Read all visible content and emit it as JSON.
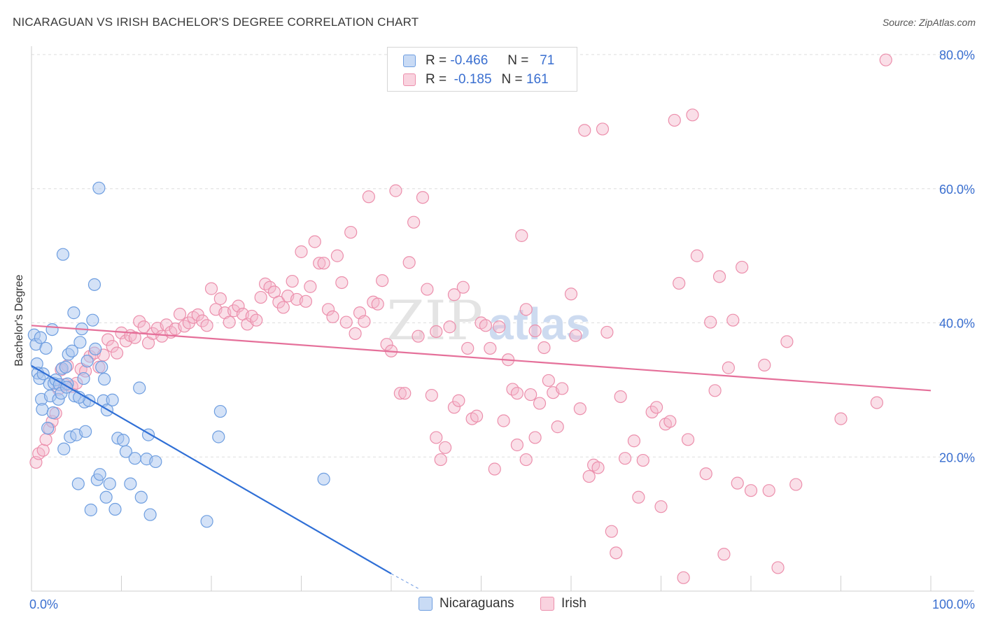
{
  "title": "NICARAGUAN VS IRISH BACHELOR'S DEGREE CORRELATION CHART",
  "source": "Source: ZipAtlas.com",
  "watermark": {
    "zip": "ZIP",
    "atlas": "atlas"
  },
  "colors": {
    "blue_fill": "#a9c6ef",
    "blue_stroke": "#6e9ee0",
    "blue_line": "#2f6fd6",
    "pink_fill": "#f5b8cb",
    "pink_stroke": "#ec8fac",
    "pink_line": "#e5709a",
    "axis_label": "#3a6fd0",
    "grid": "#dddddd"
  },
  "legend": {
    "row1": {
      "r_label": "R =",
      "r_value": "-0.466",
      "n_label": "N =",
      "n_value": "71"
    },
    "row2": {
      "r_label": "R =",
      "r_value": "-0.185",
      "n_label": "N =",
      "n_value": "161"
    }
  },
  "bottom_legend": {
    "series1": "Nicaraguans",
    "series2": "Irish"
  },
  "chart_data": {
    "type": "scatter",
    "xlabel": "",
    "ylabel": "Bachelor's Degree",
    "xlim": [
      0,
      100
    ],
    "ylim": [
      0,
      80
    ],
    "x_tick_labels": [
      "0.0%",
      "100.0%"
    ],
    "y_ticks": [
      20,
      40,
      60,
      80
    ],
    "y_tick_labels": [
      "20.0%",
      "40.0%",
      "60.0%",
      "80.0%"
    ],
    "grid": "horizontal dashed",
    "series": [
      {
        "name": "Nicaraguans",
        "color": "#a9c6ef",
        "trend": {
          "x": [
            0,
            40
          ],
          "y": [
            33.6,
            2.6
          ]
        },
        "trend_ext": {
          "x": [
            40,
            43
          ],
          "y": [
            2.6,
            0.4
          ]
        },
        "points": [
          [
            0.3,
            38.2
          ],
          [
            0.5,
            36.8
          ],
          [
            0.6,
            33.9
          ],
          [
            0.7,
            32.5
          ],
          [
            0.9,
            31.7
          ],
          [
            1.0,
            37.8
          ],
          [
            1.1,
            28.6
          ],
          [
            1.2,
            27.1
          ],
          [
            1.3,
            32.4
          ],
          [
            1.6,
            36.2
          ],
          [
            1.8,
            24.3
          ],
          [
            2.0,
            30.9
          ],
          [
            2.1,
            29.1
          ],
          [
            2.3,
            39.0
          ],
          [
            2.4,
            26.6
          ],
          [
            2.5,
            31.0
          ],
          [
            2.7,
            31.5
          ],
          [
            3.0,
            28.6
          ],
          [
            3.1,
            30.8
          ],
          [
            3.3,
            29.5
          ],
          [
            3.4,
            33.2
          ],
          [
            3.5,
            50.2
          ],
          [
            3.6,
            21.2
          ],
          [
            3.8,
            33.4
          ],
          [
            4.0,
            30.9
          ],
          [
            4.1,
            35.3
          ],
          [
            4.3,
            23.0
          ],
          [
            4.5,
            35.8
          ],
          [
            4.7,
            41.5
          ],
          [
            4.8,
            29.1
          ],
          [
            5.0,
            23.3
          ],
          [
            5.2,
            16.0
          ],
          [
            5.4,
            37.1
          ],
          [
            5.6,
            39.1
          ],
          [
            5.8,
            31.7
          ],
          [
            5.9,
            28.2
          ],
          [
            6.0,
            23.8
          ],
          [
            6.2,
            34.3
          ],
          [
            6.4,
            28.4
          ],
          [
            6.6,
            12.1
          ],
          [
            6.8,
            40.4
          ],
          [
            7.0,
            45.7
          ],
          [
            7.1,
            36.1
          ],
          [
            7.3,
            16.6
          ],
          [
            7.5,
            60.1
          ],
          [
            7.6,
            17.4
          ],
          [
            7.8,
            33.4
          ],
          [
            8.0,
            28.4
          ],
          [
            8.1,
            31.6
          ],
          [
            8.3,
            14.0
          ],
          [
            8.4,
            27.0
          ],
          [
            8.7,
            16.0
          ],
          [
            9.0,
            28.5
          ],
          [
            9.3,
            12.2
          ],
          [
            9.6,
            22.8
          ],
          [
            10.2,
            22.5
          ],
          [
            10.5,
            20.8
          ],
          [
            11.0,
            16.0
          ],
          [
            11.5,
            19.8
          ],
          [
            12.0,
            30.3
          ],
          [
            12.2,
            14.0
          ],
          [
            12.8,
            19.7
          ],
          [
            13.0,
            23.3
          ],
          [
            13.2,
            11.4
          ],
          [
            13.8,
            19.3
          ],
          [
            19.5,
            10.4
          ],
          [
            20.8,
            23.0
          ],
          [
            21.0,
            26.8
          ],
          [
            32.5,
            16.7
          ],
          [
            5.3,
            28.9
          ],
          [
            3.9,
            30.4
          ]
        ]
      },
      {
        "name": "Irish",
        "color": "#f5b8cb",
        "trend": {
          "x": [
            0,
            100
          ],
          "y": [
            39.6,
            29.9
          ]
        },
        "points": [
          [
            0.5,
            19.2
          ],
          [
            0.8,
            20.5
          ],
          [
            1.3,
            21.0
          ],
          [
            1.6,
            22.6
          ],
          [
            2.0,
            24.2
          ],
          [
            2.3,
            25.3
          ],
          [
            2.7,
            26.5
          ],
          [
            3.0,
            30.1
          ],
          [
            3.3,
            33.0
          ],
          [
            3.7,
            30.8
          ],
          [
            4.0,
            33.6
          ],
          [
            4.5,
            30.5
          ],
          [
            5.0,
            31.0
          ],
          [
            5.5,
            33.1
          ],
          [
            6.0,
            32.8
          ],
          [
            6.5,
            35.0
          ],
          [
            7.0,
            35.5
          ],
          [
            7.5,
            33.4
          ],
          [
            8.0,
            35.2
          ],
          [
            8.5,
            37.5
          ],
          [
            9.0,
            36.5
          ],
          [
            9.5,
            35.5
          ],
          [
            10.0,
            38.5
          ],
          [
            10.5,
            37.3
          ],
          [
            11.0,
            38.1
          ],
          [
            11.5,
            37.8
          ],
          [
            12.0,
            40.2
          ],
          [
            12.5,
            39.4
          ],
          [
            13.0,
            37.0
          ],
          [
            13.5,
            38.4
          ],
          [
            14.0,
            39.2
          ],
          [
            14.5,
            38.0
          ],
          [
            15.0,
            39.7
          ],
          [
            15.5,
            38.6
          ],
          [
            16.0,
            39.1
          ],
          [
            16.5,
            41.3
          ],
          [
            17.0,
            39.5
          ],
          [
            17.5,
            40.0
          ],
          [
            18.0,
            40.8
          ],
          [
            18.5,
            41.2
          ],
          [
            19.0,
            40.3
          ],
          [
            19.5,
            39.6
          ],
          [
            20.0,
            45.1
          ],
          [
            20.5,
            42.0
          ],
          [
            21.0,
            43.6
          ],
          [
            21.5,
            41.5
          ],
          [
            22.0,
            40.1
          ],
          [
            22.5,
            41.8
          ],
          [
            23.0,
            42.5
          ],
          [
            23.5,
            41.3
          ],
          [
            24.0,
            39.8
          ],
          [
            24.5,
            41.0
          ],
          [
            25.0,
            40.4
          ],
          [
            25.5,
            43.8
          ],
          [
            26.0,
            45.8
          ],
          [
            26.5,
            45.3
          ],
          [
            27.0,
            44.6
          ],
          [
            27.5,
            43.1
          ],
          [
            28.0,
            42.3
          ],
          [
            28.5,
            44.0
          ],
          [
            29.0,
            46.2
          ],
          [
            29.5,
            43.5
          ],
          [
            30.0,
            50.6
          ],
          [
            30.5,
            43.2
          ],
          [
            31.0,
            45.4
          ],
          [
            31.5,
            52.1
          ],
          [
            32.0,
            48.9
          ],
          [
            32.5,
            48.9
          ],
          [
            33.0,
            42.0
          ],
          [
            33.5,
            40.9
          ],
          [
            34.0,
            50.0
          ],
          [
            34.5,
            46.0
          ],
          [
            35.0,
            40.1
          ],
          [
            35.5,
            53.5
          ],
          [
            36.0,
            38.4
          ],
          [
            36.5,
            41.5
          ],
          [
            37.0,
            40.2
          ],
          [
            37.5,
            58.8
          ],
          [
            38.0,
            43.1
          ],
          [
            38.5,
            42.8
          ],
          [
            39.0,
            46.3
          ],
          [
            39.5,
            36.8
          ],
          [
            40.0,
            35.8
          ],
          [
            40.5,
            59.7
          ],
          [
            41.0,
            29.5
          ],
          [
            41.5,
            29.5
          ],
          [
            42.0,
            49.0
          ],
          [
            42.5,
            55.0
          ],
          [
            43.0,
            38.0
          ],
          [
            43.5,
            58.7
          ],
          [
            44.0,
            45.0
          ],
          [
            44.5,
            29.2
          ],
          [
            45.0,
            22.9
          ],
          [
            45.5,
            19.6
          ],
          [
            46.0,
            21.4
          ],
          [
            46.5,
            39.4
          ],
          [
            47.0,
            27.4
          ],
          [
            47.5,
            28.4
          ],
          [
            48.0,
            45.3
          ],
          [
            48.5,
            36.2
          ],
          [
            49.0,
            25.7
          ],
          [
            49.5,
            26.1
          ],
          [
            50.0,
            40.0
          ],
          [
            50.5,
            39.6
          ],
          [
            51.0,
            36.2
          ],
          [
            51.5,
            18.2
          ],
          [
            52.0,
            39.4
          ],
          [
            52.5,
            25.4
          ],
          [
            53.0,
            34.5
          ],
          [
            53.5,
            30.1
          ],
          [
            54.0,
            21.8
          ],
          [
            54.5,
            53.0
          ],
          [
            55.0,
            19.6
          ],
          [
            55.5,
            29.3
          ],
          [
            56.0,
            22.9
          ],
          [
            56.5,
            28.0
          ],
          [
            57.0,
            36.3
          ],
          [
            57.5,
            31.4
          ],
          [
            58.0,
            29.6
          ],
          [
            58.5,
            24.5
          ],
          [
            59.0,
            30.2
          ],
          [
            60.0,
            44.3
          ],
          [
            60.5,
            38.1
          ],
          [
            61.0,
            27.2
          ],
          [
            61.5,
            68.7
          ],
          [
            62.0,
            17.1
          ],
          [
            62.5,
            18.8
          ],
          [
            63.0,
            18.4
          ],
          [
            63.5,
            68.9
          ],
          [
            64.0,
            38.6
          ],
          [
            64.5,
            8.9
          ],
          [
            65.0,
            5.7
          ],
          [
            65.5,
            29.0
          ],
          [
            66.0,
            19.8
          ],
          [
            67.0,
            22.4
          ],
          [
            67.5,
            14.0
          ],
          [
            68.0,
            19.5
          ],
          [
            69.0,
            26.7
          ],
          [
            69.5,
            27.4
          ],
          [
            70.0,
            12.6
          ],
          [
            70.5,
            24.9
          ],
          [
            71.0,
            25.3
          ],
          [
            71.5,
            70.2
          ],
          [
            72.0,
            45.9
          ],
          [
            72.5,
            2.0
          ],
          [
            73.0,
            22.6
          ],
          [
            73.5,
            71.0
          ],
          [
            74.0,
            50.0
          ],
          [
            75.0,
            17.5
          ],
          [
            75.5,
            40.1
          ],
          [
            76.0,
            29.9
          ],
          [
            76.5,
            46.9
          ],
          [
            77.0,
            5.5
          ],
          [
            77.5,
            33.3
          ],
          [
            78.0,
            40.4
          ],
          [
            78.5,
            16.1
          ],
          [
            79.0,
            48.3
          ],
          [
            80.0,
            15.0
          ],
          [
            81.5,
            33.7
          ],
          [
            82.0,
            15.0
          ],
          [
            83.0,
            3.5
          ],
          [
            84.0,
            37.2
          ],
          [
            85.0,
            15.9
          ],
          [
            95.0,
            79.2
          ],
          [
            90.0,
            25.7
          ],
          [
            94.0,
            28.1
          ],
          [
            55.0,
            42.0
          ],
          [
            56.0,
            38.8
          ],
          [
            54.0,
            29.5
          ],
          [
            47.0,
            44.2
          ],
          [
            45.0,
            38.7
          ]
        ]
      }
    ]
  }
}
